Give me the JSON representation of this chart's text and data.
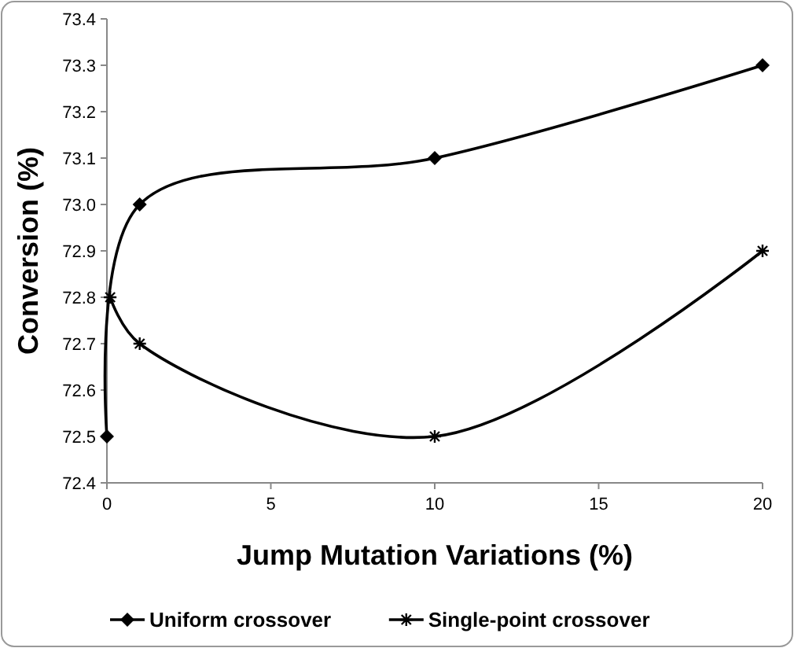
{
  "chart_data": {
    "type": "line",
    "xlabel": "Jump Mutation Variations (%)",
    "ylabel": "Conversion (%)",
    "xlim": [
      0,
      20
    ],
    "xticks": [
      0,
      5,
      10,
      15,
      20
    ],
    "ylim": [
      72.4,
      73.4
    ],
    "yticks": [
      {
        "value": 72.4,
        "label": "72.4"
      },
      {
        "value": 72.5,
        "label": "72.5"
      },
      {
        "value": 72.6,
        "label": "72.6"
      },
      {
        "value": 72.7,
        "label": "72.7"
      },
      {
        "value": 72.8,
        "label": "72.8"
      },
      {
        "value": 72.9,
        "label": "72.9"
      },
      {
        "value": 73,
        "label": "73.0"
      },
      {
        "value": 73.1,
        "label": "73.1"
      },
      {
        "value": 73.2,
        "label": "73.2"
      },
      {
        "value": 73.3,
        "label": "73.3"
      },
      {
        "value": 73.4,
        "label": "73.4"
      }
    ],
    "grid": false,
    "legend": "bottom",
    "line_style": "solid",
    "series": [
      {
        "name": "Uniform crossover",
        "color": "#000000",
        "marker": "diamond",
        "x": [
          0,
          1,
          10,
          20
        ],
        "values": [
          72.5,
          73.0,
          73.1,
          73.3
        ]
      },
      {
        "name": "Single-point crossover",
        "color": "#000000",
        "marker": "cross",
        "x": [
          0.1,
          1,
          10,
          20
        ],
        "values": [
          72.8,
          72.7,
          72.5,
          72.9
        ]
      }
    ]
  }
}
